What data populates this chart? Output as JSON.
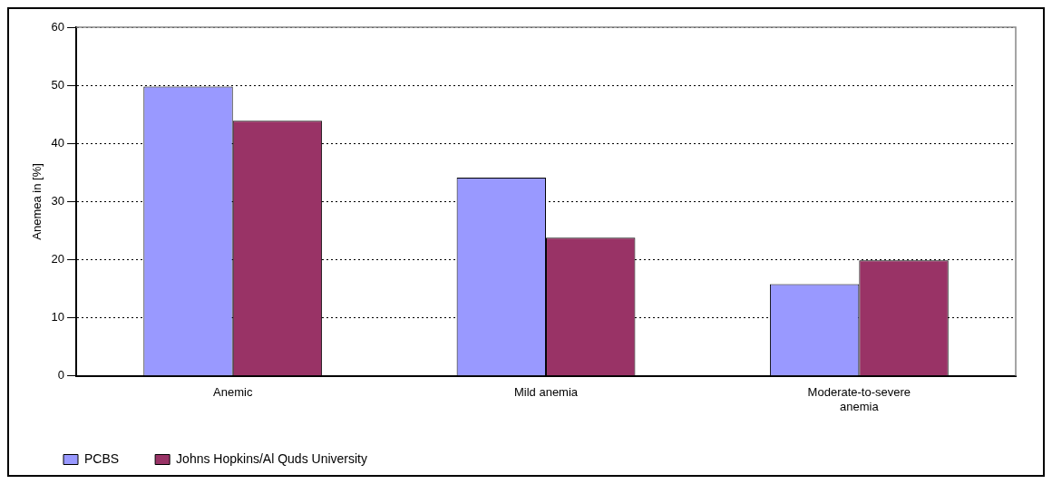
{
  "chart_data": {
    "type": "bar",
    "ylabel": "Anemea in [%]",
    "categories": [
      "Anemic",
      "Mild anemia",
      "Moderate-to-severe anemia"
    ],
    "series": [
      {
        "name": "PCBS",
        "color": "#9999ff",
        "values": [
          49.8,
          34.1,
          15.8
        ]
      },
      {
        "name": "Johns Hopkins/Al Quds University",
        "color": "#993366",
        "values": [
          43.9,
          23.8,
          19.9
        ]
      }
    ],
    "ylim": [
      0,
      60
    ],
    "yticks": [
      0,
      10,
      20,
      30,
      40,
      50,
      60
    ],
    "grid": "y",
    "legend": "bottom"
  }
}
